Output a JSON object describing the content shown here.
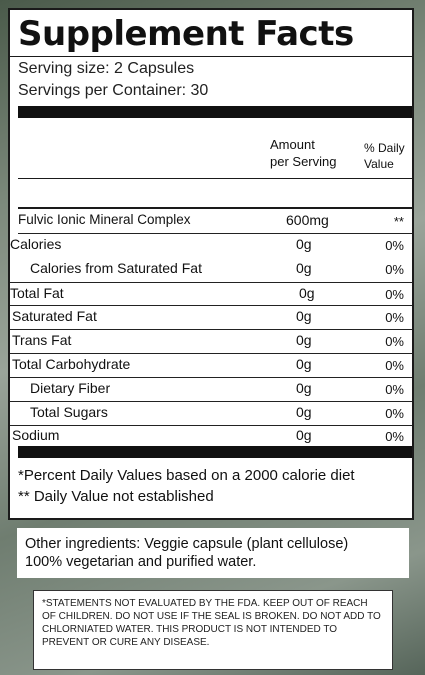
{
  "panel": {
    "title": "Supplement Facts",
    "serving_size": "Serving size: 2 Capsules",
    "servings_per_container": "Servings per Container: 30",
    "header": {
      "amount_line1": "Amount",
      "amount_line2": "per Serving",
      "dv_line1": "% Daily",
      "dv_line2": "Value"
    },
    "rows": [
      {
        "name": "Fulvic Ionic Mineral Complex",
        "amount": "600mg",
        "dv": "**"
      },
      {
        "name": "Calories",
        "amount": "0g",
        "dv": "0%"
      },
      {
        "name": "Calories from Saturated Fat",
        "amount": "0g",
        "dv": "0%"
      },
      {
        "name": "Total Fat",
        "amount": "0g",
        "dv": "0%"
      },
      {
        "name": "Saturated Fat",
        "amount": "0g",
        "dv": "0%"
      },
      {
        "name": "Trans Fat",
        "amount": "0g",
        "dv": "0%"
      },
      {
        "name": "Total Carbohydrate",
        "amount": "0g",
        "dv": "0%"
      },
      {
        "name": "Dietary Fiber",
        "amount": "0g",
        "dv": "0%"
      },
      {
        "name": "Total Sugars",
        "amount": "0g",
        "dv": "0%"
      },
      {
        "name": "Sodium",
        "amount": "0g",
        "dv": "0%"
      }
    ],
    "footnote1": "*Percent Daily Values based on a 2000 calorie diet",
    "footnote2": "** Daily Value not established"
  },
  "ingredients": {
    "line1": "Other ingredients: Veggie capsule (plant cellulose)",
    "line2": "100% vegetarian and purified water."
  },
  "disclaimer": {
    "text": "*STATEMENTS NOT EVALUATED BY THE FDA. KEEP OUT OF REACH OF CHILDREN.  DO NOT USE IF THE SEAL IS BROKEN.  DO NOT ADD TO CHLORNIATED WATER.  THIS PRODUCT IS NOT INTENDED TO PREVENT OR CURE ANY DISEASE."
  }
}
